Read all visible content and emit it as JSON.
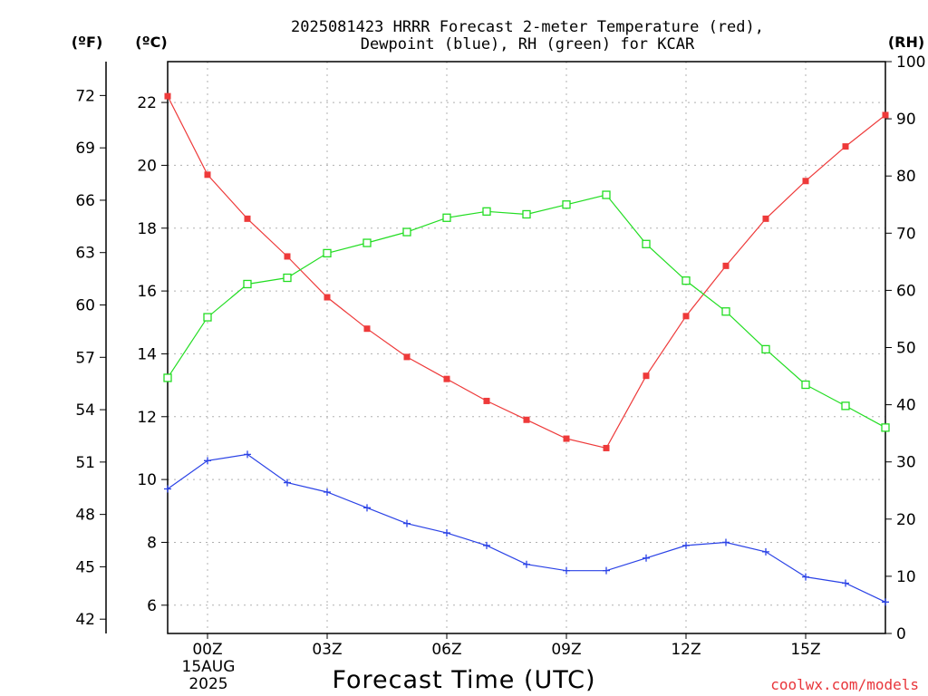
{
  "title_line1": "2025081423 HRRR Forecast 2-meter Temperature (red),",
  "title_line2": "Dewpoint (blue), RH (green) for KCAR",
  "xlabel": "Forecast Time (UTC)",
  "credit": "coolwx.com/models",
  "unit_labels": {
    "fahrenheit": "(ºF)",
    "celsius": "(ºC)",
    "rh": "(RH)"
  },
  "x_date_line1": "15AUG",
  "x_date_line2": "2025",
  "chart_data": {
    "type": "line",
    "x_label": "Forecast Time (UTC)",
    "x_hours": [
      -1,
      0,
      1,
      2,
      3,
      4,
      5,
      6,
      7,
      8,
      9,
      10,
      11,
      12,
      13,
      14,
      15,
      16,
      17
    ],
    "x_ticks": [
      {
        "hour": 0,
        "label": "00Z"
      },
      {
        "hour": 3,
        "label": "03Z"
      },
      {
        "hour": 6,
        "label": "06Z"
      },
      {
        "hour": 9,
        "label": "09Z"
      },
      {
        "hour": 12,
        "label": "12Z"
      },
      {
        "hour": 15,
        "label": "15Z"
      }
    ],
    "xlim": [
      -1,
      17
    ],
    "ylim_c": [
      5.1,
      23.3
    ],
    "y_ticks_c": [
      "6",
      "8",
      "10",
      "12",
      "14",
      "16",
      "18",
      "20",
      "22"
    ],
    "y_ticks_f": [
      "42",
      "45",
      "48",
      "51",
      "54",
      "57",
      "60",
      "63",
      "66",
      "69",
      "72"
    ],
    "ylim_rh": [
      0,
      100
    ],
    "y_ticks_rh": [
      "0",
      "10",
      "20",
      "30",
      "40",
      "50",
      "60",
      "70",
      "80",
      "90",
      "100"
    ],
    "series": [
      {
        "name": "Temperature (red)",
        "axis": "celsius",
        "color": "#ee3a3a",
        "marker": "filled-square",
        "values": [
          22.2,
          19.7,
          18.3,
          17.1,
          15.8,
          14.8,
          13.9,
          13.2,
          12.5,
          11.9,
          11.3,
          11.0,
          13.3,
          15.2,
          16.8,
          18.3,
          19.5,
          20.6,
          21.6
        ]
      },
      {
        "name": "Dewpoint (blue)",
        "axis": "celsius",
        "color": "#2a42e6",
        "marker": "plus",
        "values": [
          9.7,
          10.6,
          10.8,
          9.9,
          9.6,
          9.1,
          8.6,
          8.3,
          7.9,
          7.3,
          7.1,
          7.1,
          7.5,
          7.9,
          8.0,
          7.7,
          6.9,
          6.7,
          6.1
        ]
      },
      {
        "name": "RH (green)",
        "axis": "rh",
        "color": "#22dd22",
        "marker": "open-square",
        "values": [
          44.7,
          55.3,
          61.1,
          62.2,
          66.5,
          68.3,
          70.2,
          72.7,
          73.8,
          73.3,
          75.0,
          76.7,
          68.1,
          61.7,
          56.3,
          49.7,
          43.5,
          39.8,
          36.0
        ]
      }
    ]
  }
}
